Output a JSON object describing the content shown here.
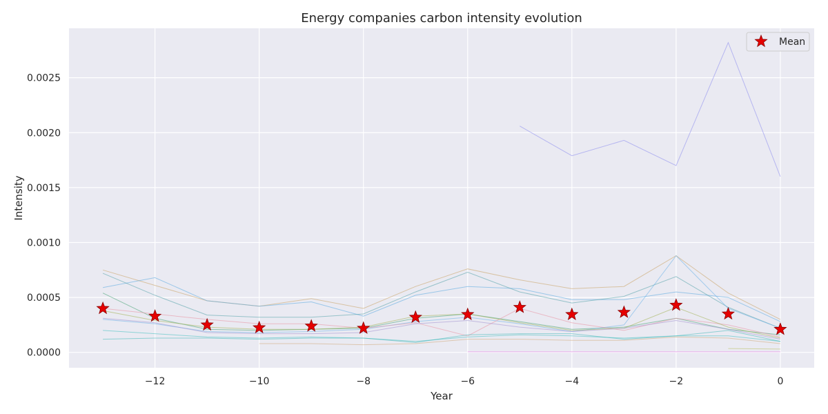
{
  "chart_data": {
    "type": "line",
    "title": "Energy companies carbon intensity evolution",
    "xlabel": "Year",
    "ylabel": "Intensity",
    "xlim": [
      -13.65,
      0.65
    ],
    "ylim": [
      -0.00014,
      0.00295
    ],
    "xticks": [
      -12,
      -10,
      -8,
      -6,
      -4,
      -2,
      0
    ],
    "xtick_labels": [
      "−12",
      "−10",
      "−8",
      "−6",
      "−4",
      "−2",
      "0"
    ],
    "yticks": [
      0.0,
      0.0005,
      0.001,
      0.0015,
      0.002,
      0.0025
    ],
    "ytick_labels": [
      "0.0000",
      "0.0005",
      "0.0010",
      "0.0015",
      "0.0020",
      "0.0025"
    ],
    "grid": true,
    "legend": {
      "position": "top-right",
      "entries": [
        "Mean"
      ]
    },
    "colors": {
      "background": "#eaeaf2",
      "grid": "#ffffff",
      "mean_marker_fill": "#e60000",
      "mean_marker_edge": "#8b0000"
    },
    "mean": {
      "name": "Mean",
      "x": [
        -13,
        -12,
        -11,
        -10,
        -9,
        -8,
        -7,
        -6,
        -5,
        -4,
        -3,
        -2,
        -1,
        0
      ],
      "y": [
        0.0004,
        0.00033,
        0.00025,
        0.000225,
        0.00024,
        0.00022,
        0.00032,
        0.000345,
        0.00041,
        0.000345,
        0.000365,
        0.00043,
        0.00035,
        0.00021
      ]
    },
    "company_series": [
      {
        "color": "#8888ee",
        "x": [
          -5,
          -4,
          -3,
          -2,
          -1,
          0
        ],
        "y": [
          0.00206,
          0.00179,
          0.00193,
          0.0017,
          0.00282,
          0.0016
        ]
      },
      {
        "color": "#c8a060",
        "x": [
          -13,
          -12,
          -11,
          -10,
          -9,
          -8,
          -7,
          -6,
          -5,
          -4,
          -3,
          -2,
          -1,
          0
        ],
        "y": [
          0.00075,
          0.00061,
          0.00047,
          0.00042,
          0.00049,
          0.0004,
          0.0006,
          0.00076,
          0.00066,
          0.00058,
          0.0006,
          0.00088,
          0.00054,
          0.0003
        ]
      },
      {
        "color": "#55a8e0",
        "x": [
          -13,
          -12,
          -11,
          -10,
          -9,
          -8,
          -7,
          -6,
          -5,
          -4,
          -3,
          -2,
          -1,
          0
        ],
        "y": [
          0.00059,
          0.00068,
          0.00047,
          0.00042,
          0.00046,
          0.00033,
          0.00052,
          0.0006,
          0.00058,
          0.00048,
          0.00048,
          0.00055,
          0.0005,
          0.00028
        ]
      },
      {
        "color": "#50a0a8",
        "x": [
          -13,
          -12,
          -11,
          -10,
          -9,
          -8,
          -7,
          -6,
          -5,
          -4,
          -3,
          -2,
          -1,
          0
        ],
        "y": [
          0.00072,
          0.00052,
          0.00034,
          0.00032,
          0.00032,
          0.00035,
          0.00055,
          0.00073,
          0.00055,
          0.00045,
          0.00051,
          0.00069,
          0.00041,
          0.00022
        ]
      },
      {
        "color": "#40a070",
        "x": [
          -13,
          -12,
          -11,
          -10,
          -9,
          -8,
          -7,
          -6,
          -5,
          -4,
          -3,
          -2,
          -1,
          0
        ],
        "y": [
          0.00054,
          0.00031,
          0.00021,
          0.0002,
          0.00021,
          0.00022,
          0.00031,
          0.00035,
          0.00028,
          0.00021,
          0.00023,
          0.00031,
          0.00021,
          0.00016
        ]
      },
      {
        "color": "#6ab0e8",
        "x": [
          -13,
          -12,
          -11,
          -10,
          -9,
          -8,
          -7,
          -6,
          -5,
          -4,
          -3,
          -2,
          -1,
          0
        ],
        "y": [
          0.0003,
          0.00026,
          0.00019,
          0.00018,
          0.00019,
          0.00021,
          0.00028,
          0.00032,
          0.00026,
          0.00019,
          0.00025,
          0.00088,
          0.0004,
          0.00022
        ]
      },
      {
        "color": "#e890a0",
        "x": [
          -13,
          -12,
          -11,
          -10,
          -9,
          -8,
          -7,
          -6,
          -5,
          -4,
          -3,
          -2,
          -1,
          0
        ],
        "y": [
          0.0004,
          0.00035,
          0.0003,
          0.00026,
          0.00026,
          0.00022,
          0.00027,
          0.00015,
          0.0004,
          0.00027,
          0.0002,
          0.00031,
          0.00025,
          0.00014
        ]
      },
      {
        "color": "#a0b050",
        "x": [
          -13,
          -12,
          -11,
          -10,
          -9,
          -8,
          -7,
          -6,
          -5,
          -4,
          -3,
          -2,
          -1,
          0
        ],
        "y": [
          0.00038,
          0.00029,
          0.00023,
          0.00021,
          0.00021,
          0.00023,
          0.00033,
          0.00035,
          0.00027,
          0.0002,
          0.00022,
          0.00041,
          0.00023,
          0.00013
        ]
      },
      {
        "color": "#a090d0",
        "x": [
          -13,
          -12,
          -11,
          -10,
          -9,
          -8,
          -7,
          -6,
          -5,
          -4,
          -3,
          -2,
          -1,
          0
        ],
        "y": [
          0.00031,
          0.00027,
          0.00018,
          0.00017,
          0.00017,
          0.00018,
          0.00026,
          0.00029,
          0.00023,
          0.00019,
          0.00022,
          0.00029,
          0.00021,
          0.00012
        ]
      },
      {
        "color": "#40c0c0",
        "x": [
          -13,
          -12,
          -11,
          -10,
          -9,
          -8,
          -7,
          -6,
          -5,
          -4,
          -3,
          -2,
          -1,
          0
        ],
        "y": [
          0.0002,
          0.00017,
          0.00014,
          0.00013,
          0.00014,
          0.00013,
          0.0001,
          0.00014,
          0.00016,
          0.00015,
          0.00013,
          0.00015,
          0.00015,
          0.0001
        ]
      },
      {
        "color": "#40b8b8",
        "x": [
          -13,
          -12,
          -11,
          -10,
          -9,
          -8,
          -7,
          -6,
          -5,
          -4,
          -3,
          -2,
          -1,
          0
        ],
        "y": [
          0.00012,
          0.00013,
          0.00013,
          0.00012,
          0.00013,
          0.00013,
          9e-05,
          0.00016,
          0.00017,
          0.00017,
          0.00012,
          0.00015,
          0.0002,
          0.0001
        ]
      },
      {
        "color": "#d0a878",
        "x": [
          -10,
          -9,
          -8,
          -7,
          -6,
          -5,
          -4,
          -3,
          -2,
          -1,
          0
        ],
        "y": [
          8e-05,
          8e-05,
          7e-05,
          8e-05,
          0.00012,
          0.00012,
          0.00011,
          0.00011,
          0.00014,
          0.00013,
          8e-05
        ]
      },
      {
        "color": "#b8c060",
        "x": [
          -1,
          0
        ],
        "y": [
          3.5e-05,
          3e-05
        ]
      },
      {
        "color": "#e070e0",
        "x": [
          -6,
          -5,
          -4,
          -3,
          -2,
          -1,
          0
        ],
        "y": [
          5e-06,
          5e-06,
          5e-06,
          5e-06,
          5e-06,
          5e-06,
          5e-06
        ]
      }
    ]
  }
}
